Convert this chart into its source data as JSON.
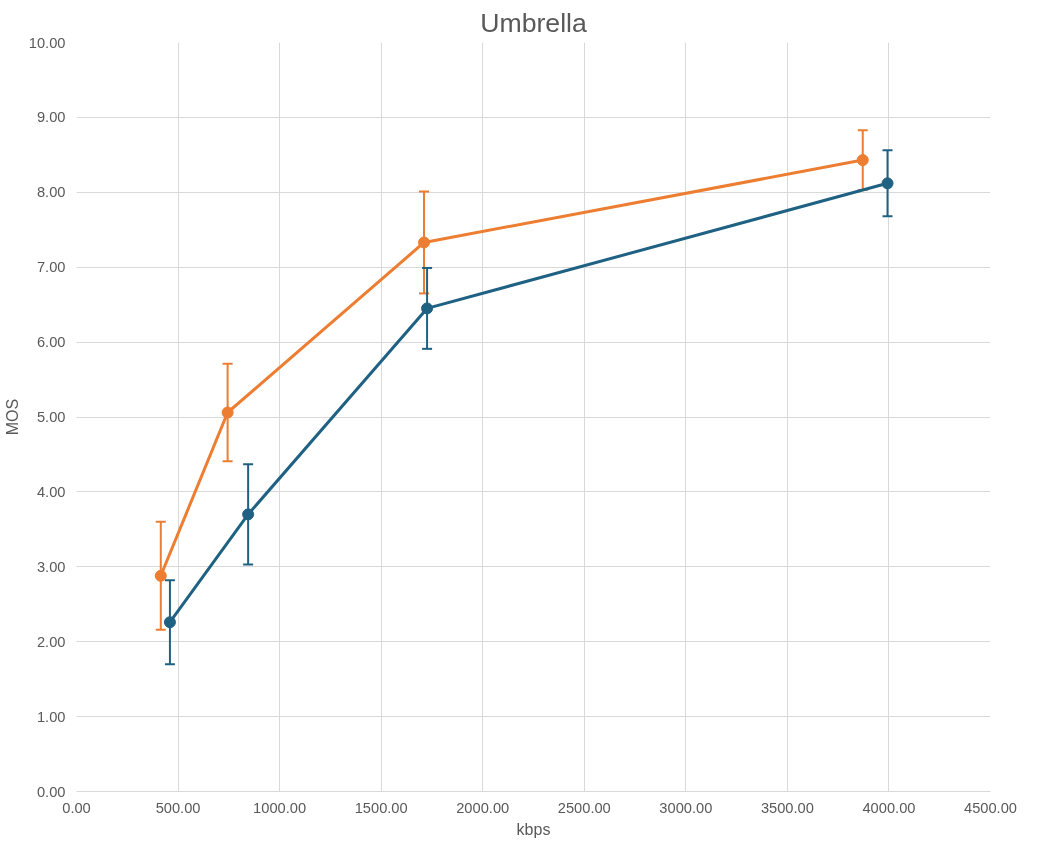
{
  "chart_data": {
    "type": "line",
    "title": "Umbrella",
    "xlabel": "kbps",
    "ylabel": "MOS",
    "series": [
      {
        "color": "#ed7d31",
        "x": [
          415,
          744,
          1711,
          3871
        ],
        "values": [
          2.88,
          5.06,
          7.33,
          8.43
        ],
        "errors": [
          0.72,
          0.65,
          0.68,
          0.4
        ]
      },
      {
        "color": "#1f6183",
        "x": [
          460,
          845,
          1726,
          3993
        ],
        "values": [
          2.26,
          3.7,
          6.45,
          8.12
        ],
        "errors": [
          0.56,
          0.67,
          0.54,
          0.44
        ]
      }
    ],
    "xlim": [
      0,
      4500
    ],
    "xticks": [
      {
        "value": 0,
        "label": "0.00"
      },
      {
        "value": 500,
        "label": "500.00"
      },
      {
        "value": 1000,
        "label": "1000.00"
      },
      {
        "value": 1500,
        "label": "1500.00"
      },
      {
        "value": 2000,
        "label": "2000.00"
      },
      {
        "value": 2500,
        "label": "2500.00"
      },
      {
        "value": 3000,
        "label": "3000.00"
      },
      {
        "value": 3500,
        "label": "3500.00"
      },
      {
        "value": 4000,
        "label": "4000.00"
      },
      {
        "value": 4500,
        "label": "4500.00"
      }
    ],
    "ylim": [
      0,
      10
    ],
    "yticks": [
      {
        "value": 0,
        "label": "0.00"
      },
      {
        "value": 1,
        "label": "1.00"
      },
      {
        "value": 2,
        "label": "2.00"
      },
      {
        "value": 3,
        "label": "3.00"
      },
      {
        "value": 4,
        "label": "4.00"
      },
      {
        "value": 5,
        "label": "5.00"
      },
      {
        "value": 6,
        "label": "6.00"
      },
      {
        "value": 7,
        "label": "7.00"
      },
      {
        "value": 8,
        "label": "8.00"
      },
      {
        "value": 9,
        "label": "9.00"
      },
      {
        "value": 10,
        "label": "10.00"
      }
    ],
    "grid": true,
    "marker": "circle",
    "line_style": "solid"
  }
}
